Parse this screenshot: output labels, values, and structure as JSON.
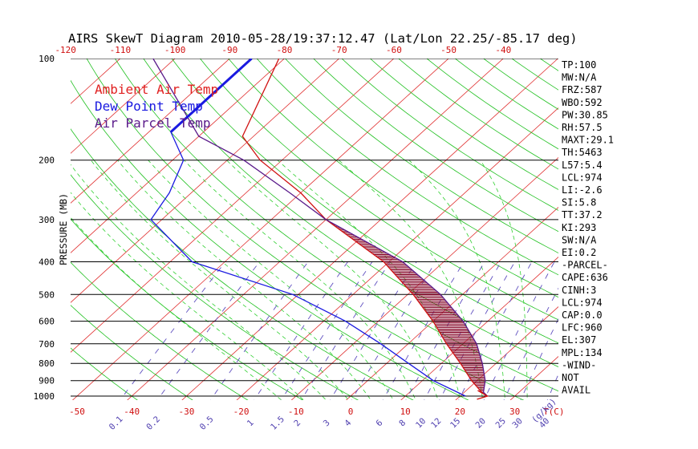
{
  "chart_data": {
    "type": "line",
    "title": "AIRS SkewT Diagram 2010-05-28/19:37:12.47 (Lat/Lon 22.25/-85.17 deg)",
    "ylabel": "PRESSURE (MB)",
    "xlabel_bottom_unit": "T(C)",
    "mixing_ratio_unit": "(g/kg)",
    "y_scale": "log",
    "ylim": [
      1050,
      100
    ],
    "xlim_bottom_c": [
      -52,
      33
    ],
    "pressure_ticks": [
      "100",
      "200",
      "300",
      "400",
      "500",
      "600",
      "700",
      "800",
      "900",
      "1000"
    ],
    "pressure_tick_values": [
      100,
      200,
      300,
      400,
      500,
      600,
      700,
      800,
      900,
      1000
    ],
    "bottom_temp_ticks": [
      "-50",
      "-40",
      "-30",
      "-20",
      "-10",
      "0",
      "10",
      "20",
      "30"
    ],
    "bottom_temp_values": [
      -50,
      -40,
      -30,
      -20,
      -10,
      0,
      10,
      20,
      30
    ],
    "top_temp_ticks": [
      "-120",
      "-110",
      "-100",
      "-90",
      "-80",
      "-70",
      "-60",
      "-50",
      "-40"
    ],
    "top_temp_values": [
      -120,
      -110,
      -100,
      -90,
      -80,
      -70,
      -60,
      -50,
      -40
    ],
    "mixing_ratio_labels": [
      "0.1",
      "0.2",
      "0.5",
      "1",
      "1.5",
      "2",
      "3",
      "4",
      "6",
      "8",
      "10",
      "12",
      "15",
      "20",
      "25",
      "30",
      "40"
    ],
    "mixing_ratio_values": [
      0.1,
      0.2,
      0.5,
      1,
      1.5,
      2,
      3,
      4,
      6,
      8,
      10,
      12,
      15,
      20,
      25,
      30,
      40
    ],
    "legend": [
      {
        "name": "Ambient Air Temp",
        "color": "#e02020"
      },
      {
        "name": "Dew Point Temp",
        "color": "#1a1ae0"
      },
      {
        "name": "Air Parcel Temp",
        "color": "#5a1a8a"
      }
    ],
    "series": [
      {
        "name": "Ambient Air Temp",
        "color": "#d01010",
        "points": [
          [
            100,
            -81
          ],
          [
            170,
            -72
          ],
          [
            200,
            -64
          ],
          [
            250,
            -50
          ],
          [
            300,
            -40
          ],
          [
            400,
            -21
          ],
          [
            500,
            -9
          ],
          [
            600,
            0
          ],
          [
            700,
            7
          ],
          [
            800,
            13.5
          ],
          [
            900,
            19
          ],
          [
            980,
            23.5
          ],
          [
            1000,
            25
          ]
        ]
      },
      {
        "name": "Dew Point Temp",
        "color": "#1a1ae0",
        "points": [
          [
            100,
            -86
          ],
          [
            165,
            -86
          ],
          [
            200,
            -78
          ],
          [
            250,
            -74
          ],
          [
            300,
            -72
          ],
          [
            400,
            -56
          ],
          [
            500,
            -31
          ],
          [
            600,
            -16
          ],
          [
            700,
            -5
          ],
          [
            800,
            4
          ],
          [
            900,
            12
          ],
          [
            1000,
            21
          ]
        ]
      },
      {
        "name": "Air Parcel Temp",
        "color": "#5a1a8a",
        "points": [
          [
            100,
            -104
          ],
          [
            170,
            -80
          ],
          [
            200,
            -67
          ],
          [
            250,
            -52
          ],
          [
            300,
            -40
          ],
          [
            400,
            -17.5
          ],
          [
            500,
            -4
          ],
          [
            600,
            5.5
          ],
          [
            700,
            12.5
          ],
          [
            800,
            17.5
          ],
          [
            900,
            21.5
          ],
          [
            974,
            23.5
          ],
          [
            1000,
            25
          ]
        ]
      }
    ],
    "wind_labels": [
      "-WIND-",
      "NOT",
      "AVAIL"
    ],
    "indices": [
      "TP:100",
      "MW:N/A",
      "FRZ:587",
      "WBO:592",
      "PW:30.85",
      "RH:57.5",
      "MAXT:29.1",
      "TH:5463",
      "L57:5.4",
      "LCL:974",
      "LI:-2.6",
      "SI:5.8",
      "TT:37.2",
      "KI:293",
      "SW:N/A",
      "EI:0.2",
      "-PARCEL-",
      "CAPE:636",
      "CINH:3",
      "LCL:974",
      "CAP:0.0",
      "LFC:960",
      "EL:307",
      "MPL:134",
      "-WIND-",
      "NOT",
      "AVAIL"
    ],
    "grid": true,
    "colors": {
      "isotherm": "#e03030",
      "dry_adiabat": "#20c020",
      "moist_adiabat": "#30d030",
      "mixing_ratio": "#6050c0",
      "isobar": "#000000",
      "cape_hatch": "#8a1030"
    }
  }
}
